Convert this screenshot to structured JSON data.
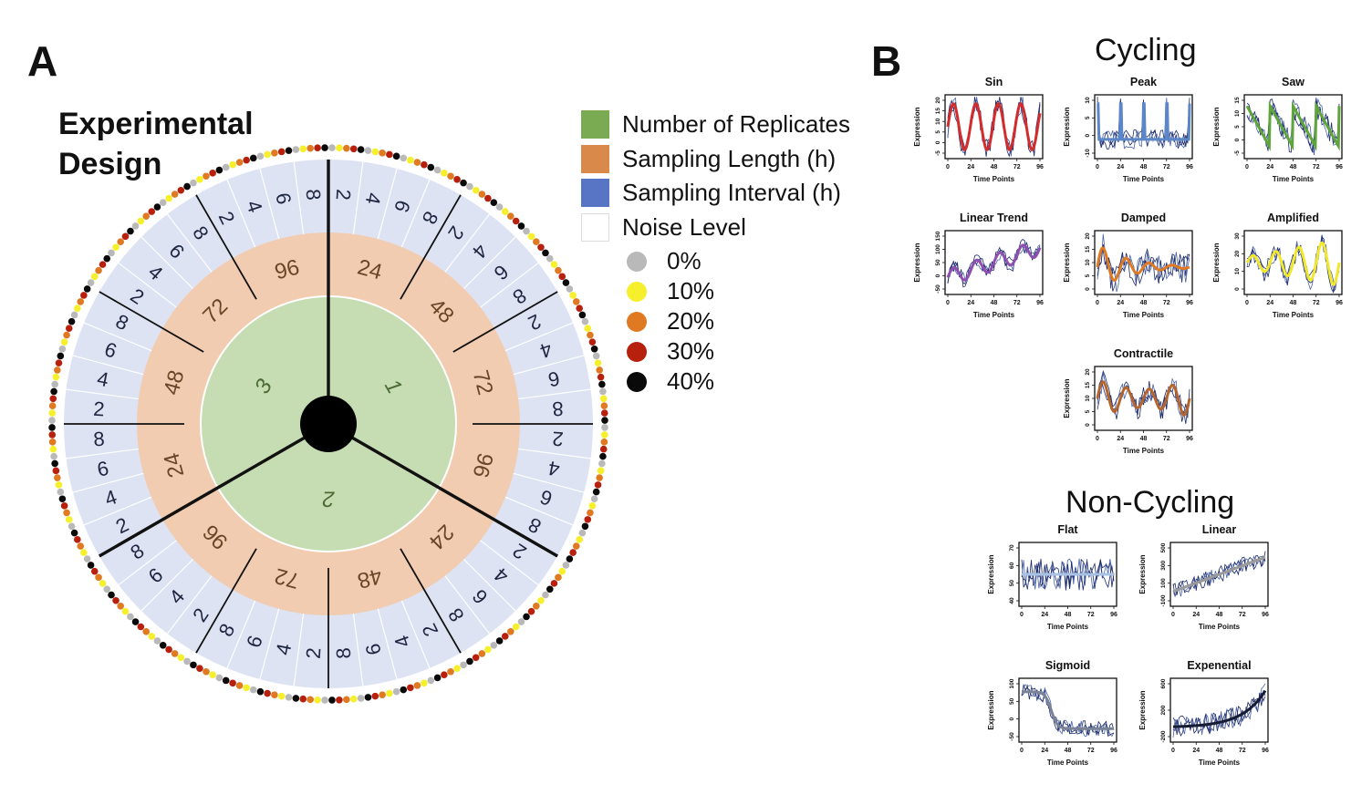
{
  "panel_a": {
    "letter": "A",
    "title_line1": "Experimental",
    "title_line2": "Design",
    "legend": [
      {
        "label": "Number of Replicates",
        "color": "#7aab52"
      },
      {
        "label": "Sampling Length (h)",
        "color": "#d98a4a"
      },
      {
        "label": "Sampling Interval (h)",
        "color": "#5874c4"
      },
      {
        "label": "Noise Level",
        "color": "#ffffff"
      }
    ],
    "noise_levels": [
      {
        "label": "0%",
        "color": "#b9b9b9"
      },
      {
        "label": "10%",
        "color": "#f6f02c"
      },
      {
        "label": "20%",
        "color": "#e07a22"
      },
      {
        "label": "30%",
        "color": "#b8200e"
      },
      {
        "label": "40%",
        "color": "#0a0a0a"
      }
    ],
    "replicates": [
      "1",
      "2",
      "3"
    ],
    "sampling_lengths": [
      "24",
      "48",
      "72",
      "96"
    ],
    "sampling_intervals": [
      "2",
      "4",
      "6",
      "8"
    ],
    "colors": {
      "replicate_fill": "#c6dcb2",
      "length_fill": "#f1ccb0",
      "interval_fill": "#dde3f3"
    }
  },
  "panel_b": {
    "letter": "B",
    "cycling_title": "Cycling",
    "noncycling_title": "Non-Cycling",
    "xlabel": "Time Points",
    "ylabel": "Expression",
    "x_ticks": [
      "0",
      "24",
      "48",
      "72",
      "96"
    ],
    "plots": [
      {
        "title": "Sin",
        "color": "#d42c2c",
        "yticks": [
          "-5",
          "0",
          "5",
          "10",
          "15",
          "20"
        ]
      },
      {
        "title": "Peak",
        "color": "#5b86c7",
        "yticks": [
          "-10",
          "0",
          "5",
          "10"
        ]
      },
      {
        "title": "Saw",
        "color": "#5ea53a",
        "yticks": [
          "-5",
          "0",
          "5",
          "10",
          "15"
        ]
      },
      {
        "title": "Linear Trend",
        "color": "#8e4fb0",
        "yticks": [
          "-50",
          "0",
          "50",
          "100",
          "150"
        ]
      },
      {
        "title": "Damped",
        "color": "#e07a22",
        "yticks": [
          "0",
          "5",
          "10",
          "15",
          "20"
        ]
      },
      {
        "title": "Amplified",
        "color": "#f2e82a",
        "yticks": [
          "0",
          "10",
          "20",
          "30"
        ]
      },
      {
        "title": "Contractile",
        "color": "#b5642c",
        "yticks": [
          "0",
          "5",
          "10",
          "15",
          "20"
        ]
      },
      {
        "title": "Flat",
        "color": "#a9c1e3",
        "yticks": [
          "40",
          "50",
          "60",
          "70"
        ]
      },
      {
        "title": "Linear",
        "color": "#9a9a9a",
        "yticks": [
          "-100",
          "100",
          "300",
          "500"
        ]
      },
      {
        "title": "Sigmoid",
        "color": "#7a8496",
        "yticks": [
          "-50",
          "0",
          "50",
          "100"
        ]
      },
      {
        "title": "Expenential",
        "color": "#141b33",
        "yticks": [
          "-200",
          "200",
          "600"
        ]
      }
    ]
  }
}
